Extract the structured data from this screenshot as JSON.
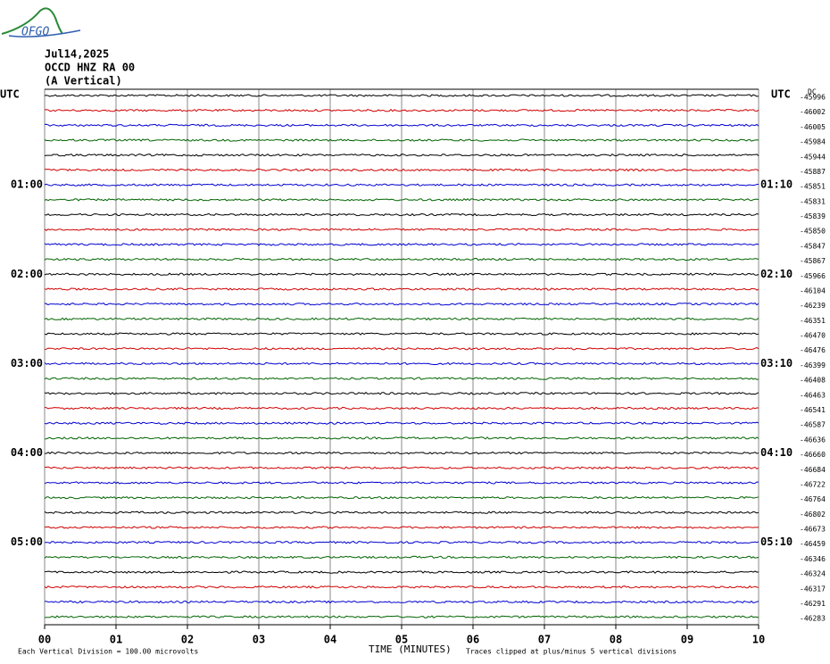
{
  "logo": "OFGO",
  "header": {
    "date": "Jul14,2025",
    "station": "OCCD HNZ RA 00",
    "component": "(A Vertical)"
  },
  "left_title": "UTC",
  "right_title": "UTC",
  "offset_title": "DC",
  "hour_labels": [
    {
      "left": "01:00",
      "right": "01:10"
    },
    {
      "left": "02:00",
      "right": "02:10"
    },
    {
      "left": "03:00",
      "right": "03:10"
    },
    {
      "left": "04:00",
      "right": "04:10"
    },
    {
      "left": "05:00",
      "right": "05:10"
    }
  ],
  "colors": [
    "#000000",
    "#d00000",
    "#0000d0",
    "#006400"
  ],
  "trace_offsets": [
    "-45996",
    "-46002",
    "-46005",
    "-45984",
    "-45944",
    "-45887",
    "-45851",
    "-45831",
    "-45839",
    "-45850",
    "-45847",
    "-45867",
    "-45966",
    "-46104",
    "-46239",
    "-46351",
    "-46470",
    "-46476",
    "-46399",
    "-46408",
    "-46463",
    "-46541",
    "-46587",
    "-46636",
    "-46660",
    "-46684",
    "-46722",
    "-46764",
    "-46802",
    "-46673",
    "-46459",
    "-46346",
    "-46324",
    "-46317",
    "-46291",
    "-46283"
  ],
  "x_ticks": [
    "00",
    "01",
    "02",
    "03",
    "04",
    "05",
    "06",
    "07",
    "08",
    "09",
    "10"
  ],
  "x_title": "TIME (MINUTES)",
  "footer": {
    "scale": "Each Vertical Division =  100.00 microvolts",
    "clip": "Traces clipped at plus/minus 5 vertical divisions"
  }
}
